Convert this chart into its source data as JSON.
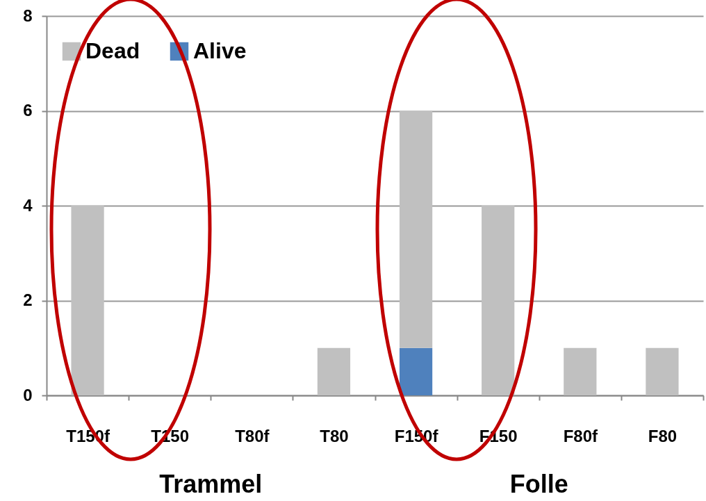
{
  "chart_data": {
    "type": "bar",
    "stacked": true,
    "categories": [
      "T150f",
      "T150",
      "T80f",
      "T80",
      "F150f",
      "F150",
      "F80f",
      "F80"
    ],
    "series": [
      {
        "name": "Alive",
        "color": "#4f81bd",
        "values": [
          0,
          0,
          0,
          0,
          1,
          0,
          0,
          0
        ]
      },
      {
        "name": "Dead",
        "color": "#c0c0c0",
        "values": [
          4,
          0,
          0,
          1,
          5,
          4,
          1,
          1
        ]
      }
    ],
    "ylim": [
      0,
      8
    ],
    "yticks": [
      0,
      2,
      4,
      6,
      8
    ],
    "grid": "y",
    "legend": "top left",
    "annotations": [
      "Trammel",
      "Folle"
    ]
  }
}
